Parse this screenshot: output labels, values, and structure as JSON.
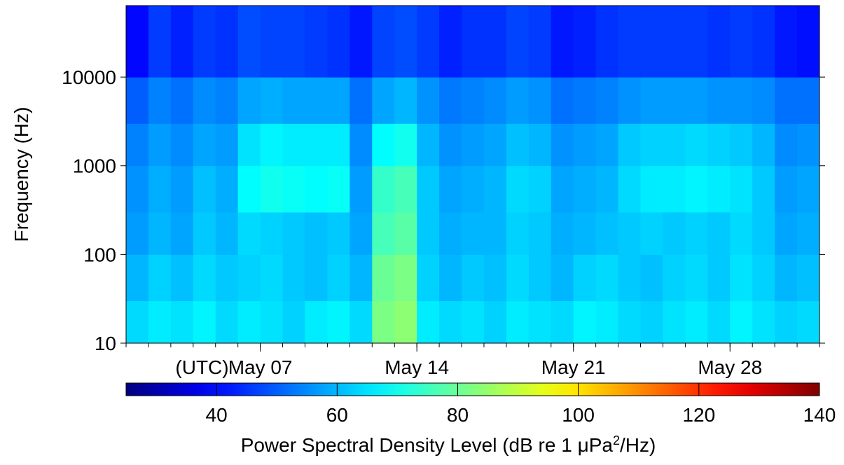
{
  "chart_data": {
    "type": "heatmap",
    "y_label": "Frequency (Hz)",
    "x_unit_label": "(UTC)",
    "y_scale": "log",
    "ylim": [
      10,
      64000
    ],
    "yticks": [
      10,
      100,
      1000,
      10000
    ],
    "xlim": [
      1,
      32
    ],
    "xticks": [
      {
        "value": 7,
        "label": "May 07"
      },
      {
        "value": 14,
        "label": "May 14"
      },
      {
        "value": 21,
        "label": "May 21"
      },
      {
        "value": 28,
        "label": "May 28"
      }
    ],
    "x_bins": [
      1,
      2,
      3,
      4,
      5,
      6,
      7,
      8,
      9,
      10,
      11,
      12,
      13,
      14,
      15,
      16,
      17,
      18,
      19,
      20,
      21,
      22,
      23,
      24,
      25,
      26,
      27,
      28,
      29,
      30,
      31,
      32
    ],
    "y_bins": [
      10,
      30,
      100,
      300,
      1000,
      3000,
      10000,
      64000
    ],
    "z": [
      [
        64,
        66,
        65,
        67,
        64,
        66,
        65,
        63,
        66,
        67,
        64,
        82,
        84,
        66,
        64,
        65,
        63,
        66,
        65,
        64,
        67,
        66,
        64,
        63,
        65,
        66,
        64,
        67,
        65,
        63,
        64
      ],
      [
        60,
        63,
        61,
        64,
        62,
        63,
        64,
        62,
        61,
        63,
        60,
        80,
        82,
        63,
        60,
        62,
        61,
        64,
        62,
        60,
        63,
        64,
        62,
        61,
        63,
        64,
        62,
        65,
        63,
        60,
        61
      ],
      [
        57,
        60,
        58,
        62,
        60,
        64,
        63,
        62,
        61,
        62,
        58,
        76,
        78,
        62,
        59,
        60,
        60,
        63,
        62,
        59,
        60,
        61,
        62,
        63,
        62,
        63,
        62,
        64,
        62,
        58,
        59
      ],
      [
        56,
        59,
        57,
        61,
        59,
        68,
        70,
        69,
        68,
        69,
        57,
        74,
        76,
        62,
        58,
        59,
        60,
        64,
        63,
        58,
        59,
        60,
        64,
        66,
        66,
        67,
        66,
        65,
        62,
        57,
        58
      ],
      [
        54,
        57,
        55,
        58,
        57,
        65,
        67,
        66,
        66,
        66,
        55,
        68,
        70,
        60,
        56,
        57,
        58,
        61,
        60,
        56,
        57,
        58,
        62,
        63,
        63,
        64,
        63,
        62,
        60,
        55,
        56
      ],
      [
        50,
        54,
        52,
        55,
        54,
        58,
        59,
        58,
        58,
        58,
        52,
        58,
        60,
        56,
        53,
        54,
        55,
        57,
        56,
        52,
        53,
        54,
        56,
        57,
        57,
        57,
        56,
        56,
        55,
        52,
        52
      ],
      [
        40,
        46,
        43,
        46,
        45,
        48,
        47,
        47,
        46,
        45,
        42,
        47,
        48,
        46,
        43,
        45,
        45,
        47,
        46,
        42,
        43,
        45,
        46,
        46,
        46,
        46,
        45,
        46,
        45,
        42,
        41
      ]
    ],
    "colormap": "jet",
    "clim": [
      25,
      140
    ],
    "cticks": [
      40,
      60,
      80,
      100,
      120,
      140
    ],
    "colorbar_label": [
      "Power Spectral Density Level (dB re 1 μPa",
      "2",
      "/Hz)"
    ]
  }
}
